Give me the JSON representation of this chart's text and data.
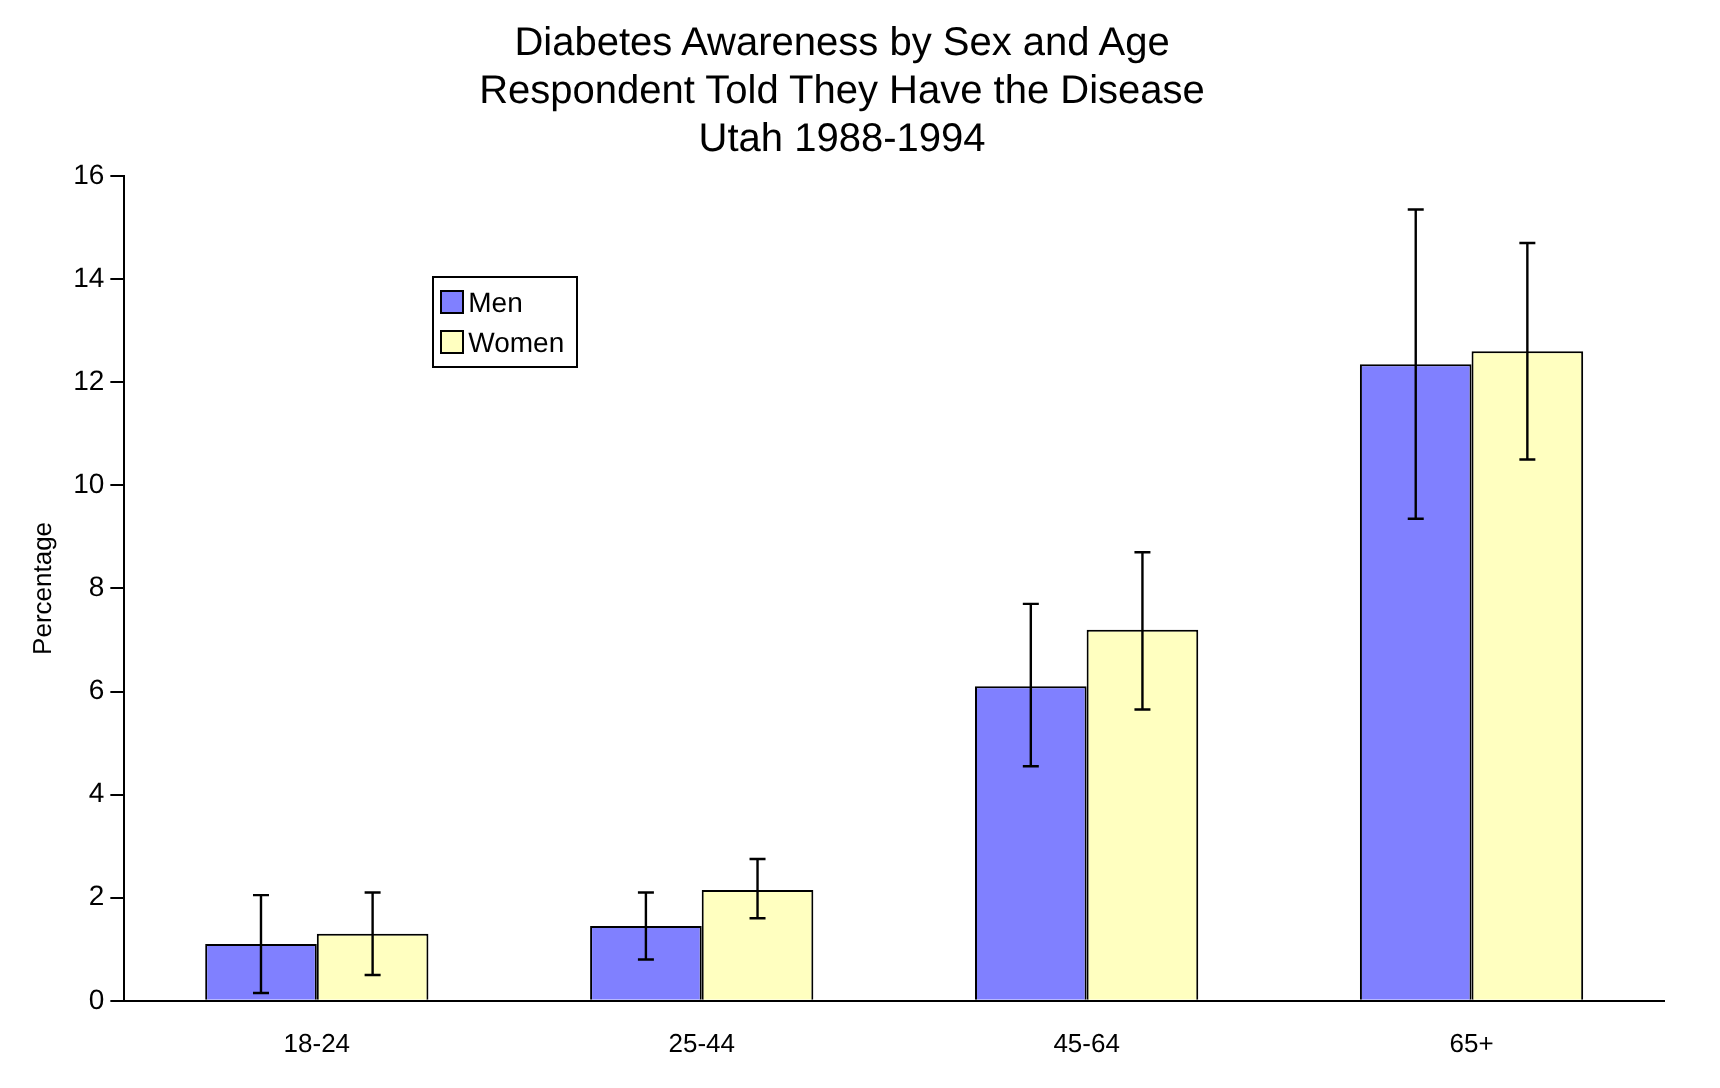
{
  "chart_data": {
    "type": "bar",
    "title": "Diabetes Awareness by Sex and Age",
    "subtitle": "Respondent Told They Have the Disease\nUtah 1988-1994",
    "ylabel": "Percentage",
    "categories": [
      "18-24",
      "25-44",
      "45-64",
      "65+"
    ],
    "series": [
      {
        "name": "Men",
        "color": "#8080ff",
        "values": [
          1.1,
          1.45,
          6.1,
          12.35
        ],
        "errors": [
          [
            0.15,
            2.05
          ],
          [
            0.8,
            2.1
          ],
          [
            4.55,
            7.7
          ],
          [
            9.35,
            15.35
          ]
        ]
      },
      {
        "name": "Women",
        "color": "#ffffc0",
        "values": [
          1.3,
          2.15,
          7.2,
          12.6
        ],
        "errors": [
          [
            0.5,
            2.1
          ],
          [
            1.6,
            2.75
          ],
          [
            5.65,
            8.7
          ],
          [
            10.5,
            14.7
          ]
        ]
      }
    ],
    "ylim": [
      0,
      16
    ],
    "yticks": [
      0,
      2,
      4,
      6,
      8,
      10,
      12,
      14,
      16
    ],
    "grid": false,
    "legend": "top left"
  }
}
